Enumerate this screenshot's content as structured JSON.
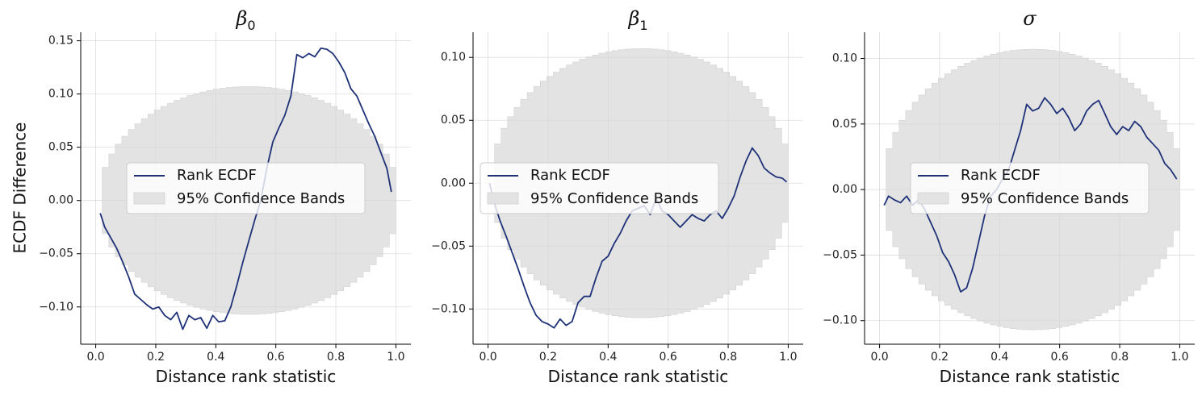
{
  "figure": {
    "ylabel": "ECDF Difference",
    "colors": {
      "ecdf_line": "#1f3278",
      "band_fill": "#e3e3e3",
      "band_edge": "#d2d2d2",
      "grid": "#d4d4d4"
    }
  },
  "chart_data": [
    {
      "type": "line",
      "title": "β",
      "title_subscript": "0",
      "xlabel": "Distance rank statistic",
      "ylabel": "ECDF Difference",
      "xlim": [
        -0.05,
        1.05
      ],
      "ylim": [
        -0.135,
        0.158
      ],
      "xticks": [
        0.0,
        0.2,
        0.4,
        0.6,
        0.8,
        1.0
      ],
      "xtick_labels": [
        "0.0",
        "0.2",
        "0.4",
        "0.6",
        "0.8",
        "1.0"
      ],
      "yticks": [
        -0.1,
        -0.05,
        0.0,
        0.05,
        0.1,
        0.15
      ],
      "ytick_labels": [
        "−0.10",
        "−0.05",
        "0.00",
        "0.05",
        "0.10",
        "0.15"
      ],
      "grid": true,
      "legend": {
        "placement": "center",
        "entries": [
          "Rank ECDF",
          "95% Confidence Bands"
        ]
      },
      "band_halfwidth": 0.107,
      "series": [
        {
          "name": "Rank ECDF",
          "x": [
            0.015,
            0.03,
            0.05,
            0.07,
            0.09,
            0.11,
            0.13,
            0.15,
            0.17,
            0.19,
            0.21,
            0.23,
            0.25,
            0.27,
            0.29,
            0.31,
            0.33,
            0.35,
            0.37,
            0.39,
            0.41,
            0.43,
            0.45,
            0.47,
            0.49,
            0.51,
            0.53,
            0.55,
            0.57,
            0.59,
            0.61,
            0.63,
            0.65,
            0.67,
            0.69,
            0.71,
            0.73,
            0.75,
            0.77,
            0.79,
            0.81,
            0.83,
            0.85,
            0.87,
            0.89,
            0.91,
            0.93,
            0.95,
            0.97,
            0.985
          ],
          "y": [
            -0.012,
            -0.025,
            -0.035,
            -0.045,
            -0.058,
            -0.072,
            -0.088,
            -0.093,
            -0.098,
            -0.102,
            -0.1,
            -0.108,
            -0.112,
            -0.105,
            -0.121,
            -0.108,
            -0.112,
            -0.11,
            -0.12,
            -0.108,
            -0.114,
            -0.113,
            -0.1,
            -0.08,
            -0.058,
            -0.038,
            -0.018,
            0.0,
            0.03,
            0.055,
            0.068,
            0.08,
            0.098,
            0.137,
            0.134,
            0.138,
            0.135,
            0.143,
            0.142,
            0.138,
            0.13,
            0.12,
            0.105,
            0.098,
            0.085,
            0.072,
            0.06,
            0.045,
            0.03,
            0.008
          ]
        }
      ]
    },
    {
      "type": "line",
      "title": "β",
      "title_subscript": "1",
      "xlabel": "Distance rank statistic",
      "xlim": [
        -0.05,
        1.05
      ],
      "ylim": [
        -0.128,
        0.12
      ],
      "xticks": [
        0.0,
        0.2,
        0.4,
        0.6,
        0.8,
        1.0
      ],
      "xtick_labels": [
        "0.0",
        "0.2",
        "0.4",
        "0.6",
        "0.8",
        "1.0"
      ],
      "yticks": [
        -0.1,
        -0.05,
        0.0,
        0.05,
        0.1
      ],
      "ytick_labels": [
        "−0.10",
        "−0.05",
        "0.00",
        "0.05",
        "0.10"
      ],
      "grid": true,
      "legend": {
        "placement": "center",
        "entries": [
          "Rank ECDF",
          "95% Confidence Bands"
        ]
      },
      "band_halfwidth": 0.107,
      "series": [
        {
          "name": "Rank ECDF",
          "x": [
            0.005,
            0.02,
            0.04,
            0.06,
            0.08,
            0.1,
            0.12,
            0.14,
            0.16,
            0.18,
            0.2,
            0.22,
            0.24,
            0.26,
            0.28,
            0.3,
            0.32,
            0.34,
            0.36,
            0.38,
            0.4,
            0.42,
            0.44,
            0.46,
            0.48,
            0.5,
            0.52,
            0.54,
            0.56,
            0.58,
            0.6,
            0.62,
            0.64,
            0.66,
            0.68,
            0.7,
            0.72,
            0.74,
            0.76,
            0.78,
            0.8,
            0.82,
            0.84,
            0.86,
            0.88,
            0.9,
            0.92,
            0.94,
            0.96,
            0.98,
            0.995
          ],
          "y": [
            0.0,
            -0.015,
            -0.03,
            -0.042,
            -0.055,
            -0.068,
            -0.082,
            -0.095,
            -0.105,
            -0.11,
            -0.112,
            -0.115,
            -0.108,
            -0.113,
            -0.11,
            -0.095,
            -0.09,
            -0.09,
            -0.075,
            -0.062,
            -0.058,
            -0.048,
            -0.04,
            -0.03,
            -0.022,
            -0.02,
            -0.018,
            -0.025,
            -0.012,
            -0.022,
            -0.025,
            -0.03,
            -0.035,
            -0.03,
            -0.025,
            -0.028,
            -0.03,
            -0.025,
            -0.022,
            -0.028,
            -0.02,
            -0.01,
            0.005,
            0.018,
            0.028,
            0.022,
            0.012,
            0.008,
            0.005,
            0.004,
            0.001
          ]
        }
      ]
    },
    {
      "type": "line",
      "title": "σ",
      "title_subscript": "",
      "xlabel": "Distance rank statistic",
      "xlim": [
        -0.05,
        1.05
      ],
      "ylim": [
        -0.118,
        0.12
      ],
      "xticks": [
        0.0,
        0.2,
        0.4,
        0.6,
        0.8,
        1.0
      ],
      "xtick_labels": [
        "0.0",
        "0.2",
        "0.4",
        "0.6",
        "0.8",
        "1.0"
      ],
      "yticks": [
        -0.1,
        -0.05,
        0.0,
        0.05,
        0.1
      ],
      "ytick_labels": [
        "−0.10",
        "−0.05",
        "0.00",
        "0.05",
        "0.10"
      ],
      "grid": true,
      "legend": {
        "placement": "center",
        "entries": [
          "Rank ECDF",
          "95% Confidence Bands"
        ]
      },
      "band_halfwidth": 0.107,
      "series": [
        {
          "name": "Rank ECDF",
          "x": [
            0.015,
            0.03,
            0.05,
            0.07,
            0.09,
            0.11,
            0.13,
            0.15,
            0.17,
            0.19,
            0.21,
            0.23,
            0.25,
            0.27,
            0.29,
            0.31,
            0.33,
            0.35,
            0.37,
            0.39,
            0.41,
            0.43,
            0.45,
            0.47,
            0.49,
            0.51,
            0.53,
            0.55,
            0.57,
            0.59,
            0.61,
            0.63,
            0.65,
            0.67,
            0.69,
            0.71,
            0.73,
            0.75,
            0.77,
            0.79,
            0.81,
            0.83,
            0.85,
            0.87,
            0.89,
            0.91,
            0.93,
            0.95,
            0.97,
            0.99
          ],
          "y": [
            -0.012,
            -0.005,
            -0.008,
            -0.01,
            -0.005,
            -0.012,
            -0.008,
            -0.015,
            -0.025,
            -0.035,
            -0.048,
            -0.055,
            -0.065,
            -0.078,
            -0.075,
            -0.06,
            -0.04,
            -0.02,
            -0.005,
            0.0,
            0.008,
            0.015,
            0.03,
            0.045,
            0.065,
            0.06,
            0.062,
            0.07,
            0.065,
            0.058,
            0.062,
            0.055,
            0.045,
            0.05,
            0.06,
            0.065,
            0.068,
            0.058,
            0.048,
            0.042,
            0.048,
            0.045,
            0.052,
            0.048,
            0.04,
            0.035,
            0.03,
            0.02,
            0.015,
            0.008
          ]
        }
      ]
    }
  ]
}
